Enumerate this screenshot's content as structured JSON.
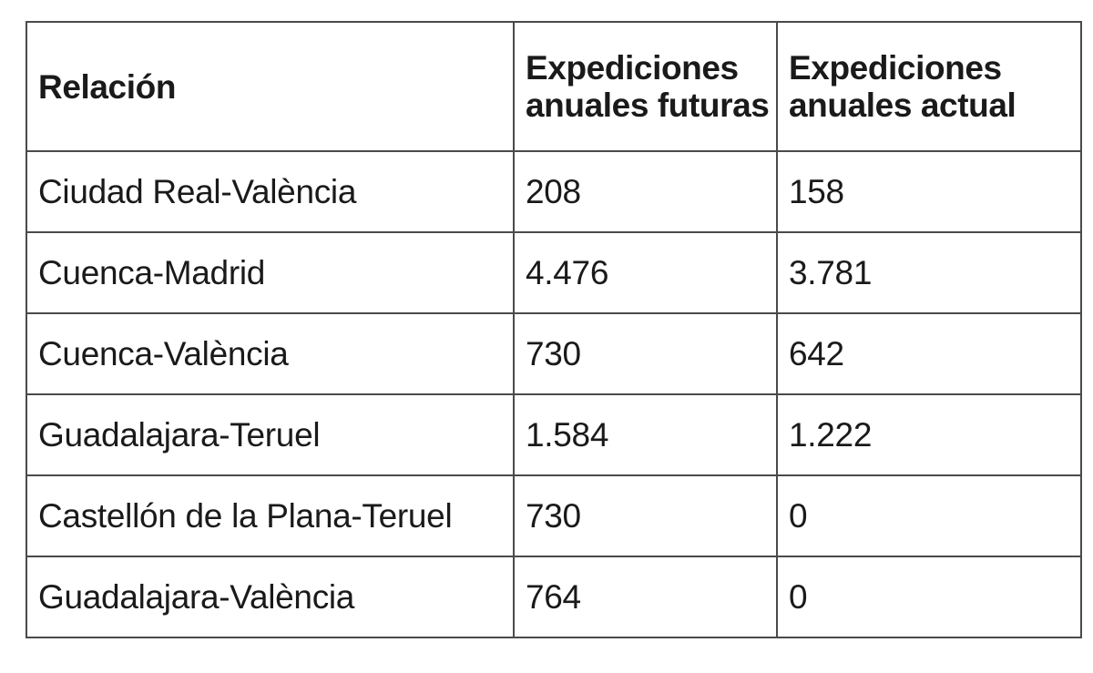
{
  "table": {
    "headers": [
      "Relación",
      "Expediciones anuales futuras",
      "Expediciones anuales actual"
    ],
    "rows": [
      {
        "relacion": "Ciudad Real-València",
        "futuras": "208",
        "actual": "158"
      },
      {
        "relacion": "Cuenca-Madrid",
        "futuras": "4.476",
        "actual": "3.781"
      },
      {
        "relacion": "Cuenca-València",
        "futuras": "730",
        "actual": "642"
      },
      {
        "relacion": "Guadalajara-Teruel",
        "futuras": "1.584",
        "actual": "1.222"
      },
      {
        "relacion": "Castellón de la Plana-Teruel",
        "futuras": "730",
        "actual": "0"
      },
      {
        "relacion": "Guadalajara-València",
        "futuras": "764",
        "actual": "0"
      }
    ]
  }
}
